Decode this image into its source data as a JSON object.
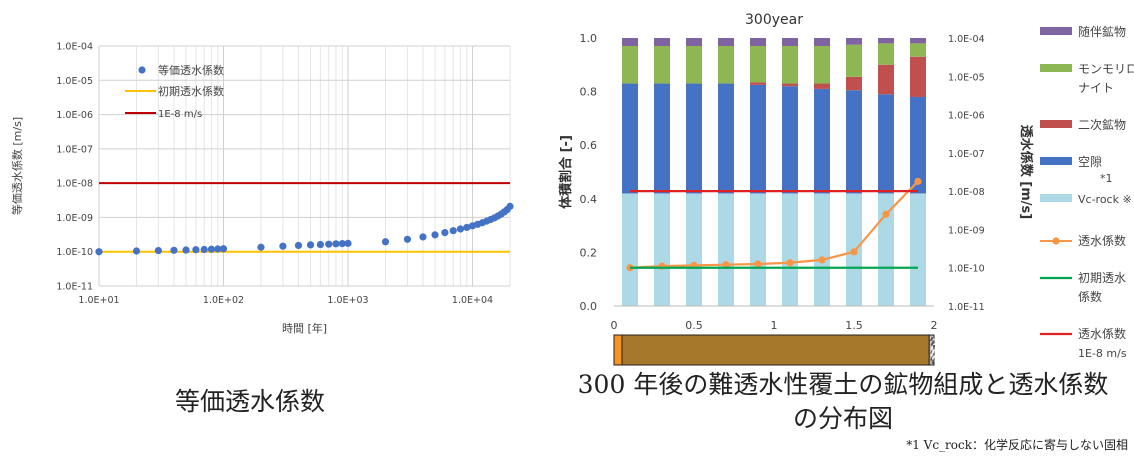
{
  "chart_data": [
    {
      "type": "scatter",
      "title": "",
      "xlabel": "時間 [年]",
      "ylabel": "等価透水係数 [m/s]",
      "x_scale": "log",
      "y_scale": "log",
      "xlim": [
        10,
        20000
      ],
      "ylim": [
        1e-11,
        0.0001
      ],
      "x_ticks": [
        "1.0E+01",
        "1.0E+02",
        "1.0E+03",
        "1.0E+04"
      ],
      "y_ticks": [
        "1.0E-11",
        "1.0E-10",
        "1.0E-09",
        "1.0E-08",
        "1.0E-07",
        "1.0E-06",
        "1.0E-05",
        "1.0E-04"
      ],
      "grid": true,
      "legend_position": "top-left",
      "legend": [
        "等価透水係数",
        "初期透水係数",
        "1E-8 m/s"
      ],
      "colors": {
        "points": "#4472C4",
        "initial": "#FFC000",
        "limit": "#C00000"
      },
      "series": [
        {
          "name": "等価透水係数",
          "kind": "points",
          "x": [
            10,
            20,
            30,
            40,
            50,
            60,
            70,
            80,
            90,
            100,
            200,
            300,
            400,
            500,
            600,
            700,
            800,
            900,
            1000,
            2000,
            3000,
            4000,
            5000,
            6000,
            7000,
            8000,
            9000,
            10000,
            11000,
            12000,
            13000,
            14000,
            15000,
            16000,
            17000,
            18000,
            19000,
            20000
          ],
          "y": [
            1e-10,
            1.05e-10,
            1.08e-10,
            1.1e-10,
            1.12e-10,
            1.14e-10,
            1.16e-10,
            1.18e-10,
            1.2e-10,
            1.22e-10,
            1.35e-10,
            1.45e-10,
            1.52e-10,
            1.58e-10,
            1.62e-10,
            1.66e-10,
            1.7e-10,
            1.72e-10,
            1.75e-10,
            1.95e-10,
            2.3e-10,
            2.7e-10,
            3.1e-10,
            3.6e-10,
            4.1e-10,
            4.6e-10,
            5.1e-10,
            5.7e-10,
            6.3e-10,
            7e-10,
            7.8e-10,
            8.7e-10,
            9.7e-10,
            1.1e-09,
            1.25e-09,
            1.45e-09,
            1.7e-09,
            2.1e-09
          ]
        },
        {
          "name": "初期透水係数",
          "kind": "hline",
          "y": 1e-10
        },
        {
          "name": "1E-8 m/s",
          "kind": "hline",
          "y": 1e-08
        }
      ]
    },
    {
      "type": "bar",
      "title": "300year",
      "xlabel": "",
      "ylabel": "体積割合 [-]",
      "y2label": "透水係数 [m/s]",
      "stacked": true,
      "ylim": [
        0,
        1.0
      ],
      "y_ticks": [
        "0.0",
        "0.2",
        "0.4",
        "0.6",
        "0.8",
        "1.0"
      ],
      "y2_scale": "log",
      "y2lim": [
        1e-11,
        0.0001
      ],
      "y2_ticks": [
        "1.0E-11",
        "1.0E-10",
        "1.0E-09",
        "1.0E-08",
        "1.0E-07",
        "1.0E-06",
        "1.0E-05",
        "1.0E-04"
      ],
      "x_ticks": [
        "0",
        "0.5",
        "1",
        "1.5",
        "2"
      ],
      "xlim": [
        0,
        2
      ],
      "grid": false,
      "legend_position": "right",
      "x": [
        0.1,
        0.3,
        0.5,
        0.7,
        0.9,
        1.1,
        1.3,
        1.5,
        1.7,
        1.9
      ],
      "stack_order": [
        "Vc-rock",
        "空隙",
        "二次鉱物",
        "モンモリロナイト",
        "随伴鉱物"
      ],
      "series": [
        {
          "name": "Vc-rock",
          "color": "#ADD8E6",
          "values": [
            0.42,
            0.42,
            0.42,
            0.42,
            0.42,
            0.42,
            0.42,
            0.42,
            0.42,
            0.42
          ]
        },
        {
          "name": "空隙",
          "color": "#4472C4",
          "values": [
            0.41,
            0.41,
            0.41,
            0.41,
            0.405,
            0.4,
            0.39,
            0.385,
            0.37,
            0.36
          ]
        },
        {
          "name": "二次鉱物",
          "color": "#C0504D",
          "values": [
            0.0,
            0.0,
            0.0,
            0.0,
            0.01,
            0.01,
            0.02,
            0.05,
            0.11,
            0.15
          ]
        },
        {
          "name": "モンモリロナイト",
          "color": "#8DB753",
          "values": [
            0.14,
            0.14,
            0.14,
            0.14,
            0.135,
            0.14,
            0.14,
            0.12,
            0.08,
            0.05
          ]
        },
        {
          "name": "随伴鉱物",
          "color": "#8064A2",
          "values": [
            0.03,
            0.03,
            0.03,
            0.03,
            0.03,
            0.03,
            0.03,
            0.025,
            0.02,
            0.02
          ]
        }
      ],
      "lines": [
        {
          "name": "透水係数",
          "color": "#F79646",
          "markers": true,
          "x": [
            0.1,
            0.3,
            0.5,
            0.7,
            0.9,
            1.1,
            1.3,
            1.5,
            1.7,
            1.9
          ],
          "y": [
            1e-10,
            1.1e-10,
            1.15e-10,
            1.2e-10,
            1.25e-10,
            1.35e-10,
            1.6e-10,
            2.6e-10,
            2.5e-09,
            1.8e-08
          ]
        },
        {
          "name": "初期透水係数",
          "color": "#00A651",
          "markers": false,
          "x": [
            0.1,
            1.9
          ],
          "y": [
            1e-10,
            1e-10
          ]
        },
        {
          "name": "透水係数 1E-8 m/s",
          "color": "#E02020",
          "markers": false,
          "x": [
            0.1,
            1.9
          ],
          "y": [
            1e-08,
            1e-08
          ]
        }
      ],
      "legend": [
        {
          "name": "随伴鉱物",
          "lines": [
            "随伴鉱物"
          ],
          "kind": "box",
          "color": "#8064A2"
        },
        {
          "name": "モンモリロナイト",
          "lines": [
            "モンモリロ",
            "ナイト"
          ],
          "kind": "box",
          "color": "#8DB753"
        },
        {
          "name": "二次鉱物",
          "lines": [
            "二次鉱物"
          ],
          "kind": "box",
          "color": "#C0504D"
        },
        {
          "name": "空隙",
          "lines": [
            "空隙"
          ],
          "kind": "box",
          "color": "#4472C4"
        },
        {
          "name": "Vc-rock",
          "lines": [
            "Vc-rock ※"
          ],
          "kind": "box",
          "color": "#ADD8E6",
          "note": "*1"
        },
        {
          "name": "透水係数",
          "lines": [
            "透水係数"
          ],
          "kind": "marker-line",
          "color": "#F79646"
        },
        {
          "name": "初期透水係数",
          "lines": [
            "初期透水",
            "係数"
          ],
          "kind": "line",
          "color": "#00A651"
        },
        {
          "name": "透水係数 1E-8 m/s",
          "lines": [
            "透水係数",
            "1E-8 m/s"
          ],
          "kind": "line",
          "color": "#E02020"
        }
      ],
      "profile_strip": [
        {
          "material": "orange",
          "color": "#F7931E",
          "x_from": 0.0,
          "x_to": 0.05
        },
        {
          "material": "brown",
          "color": "#A6782B",
          "x_from": 0.05,
          "x_to": 1.97
        },
        {
          "material": "gravel",
          "color": "#BBBBBB",
          "x_from": 1.97,
          "x_to": 2.0
        }
      ]
    }
  ],
  "captions": {
    "left": "等価透水係数",
    "right_line1": "300 年後の難透水性覆土の鉱物組成と透水係数",
    "right_line2": "の分布図",
    "footnote": "*1 Vc_rock：化学反応に寄与しない固相"
  }
}
